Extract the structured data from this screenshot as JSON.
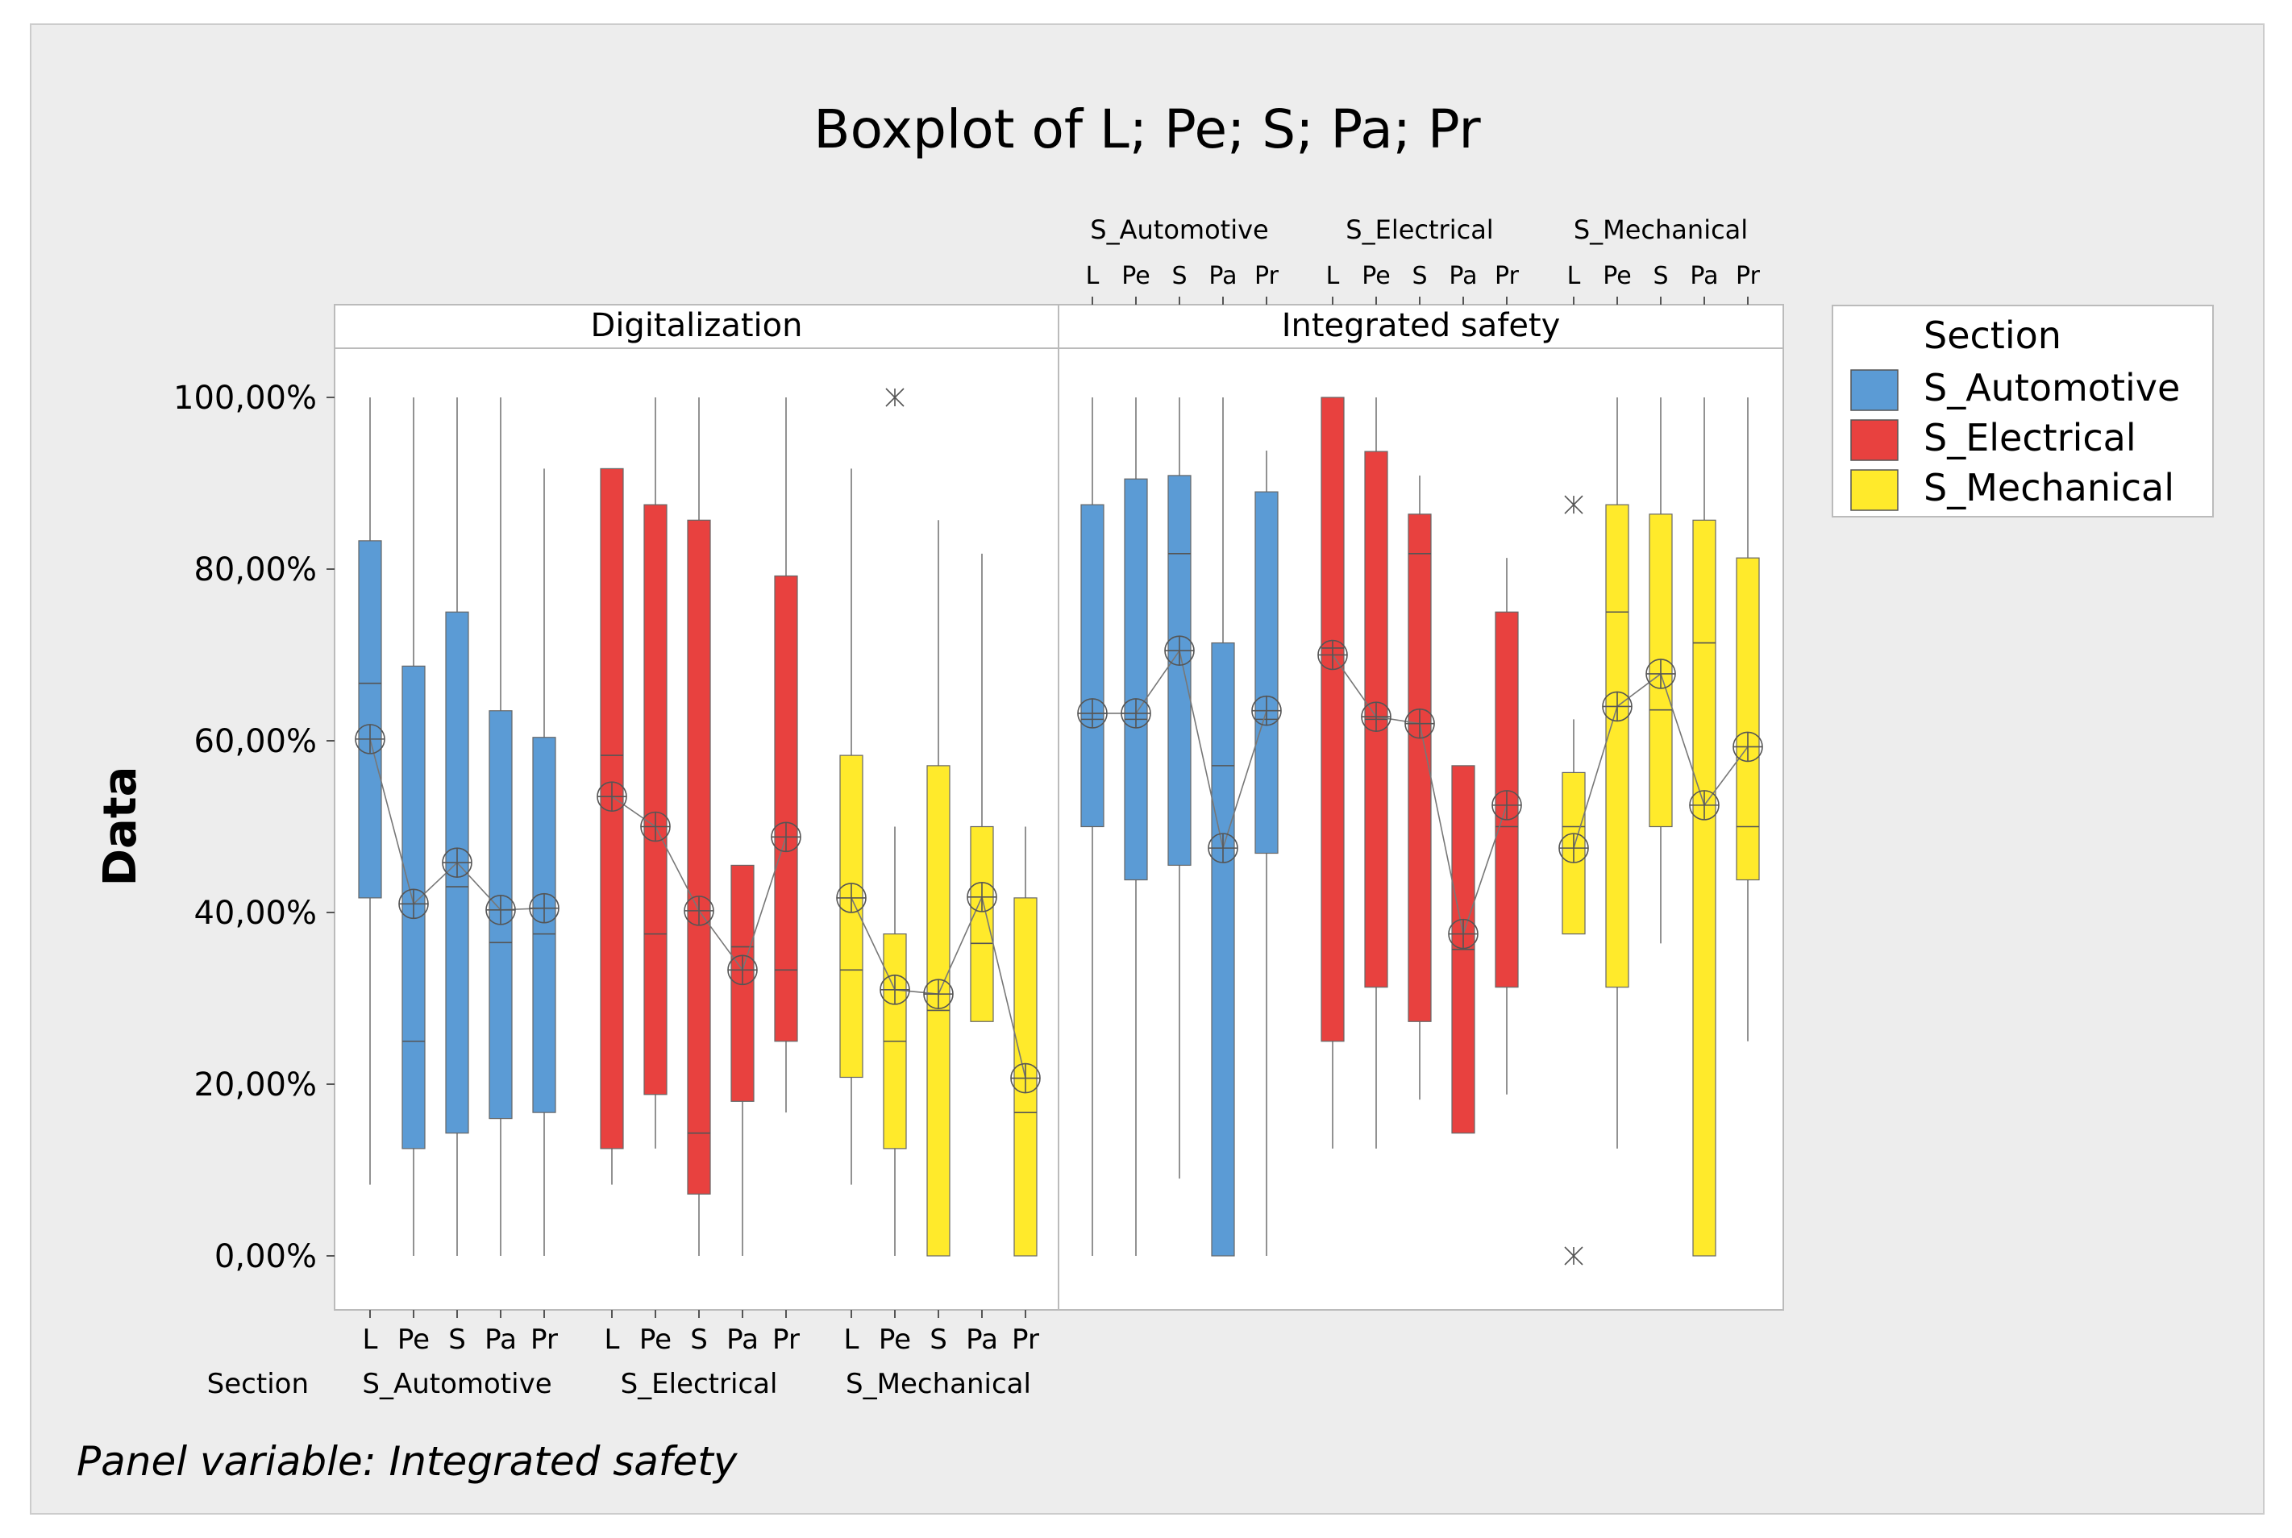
{
  "chart_data": {
    "type": "boxplot",
    "title": "Boxplot of L; Pe; S; Pa; Pr",
    "ylabel": "Data",
    "ylim": [
      -0.06,
      1.1
    ],
    "yticks": [
      0,
      0.2,
      0.4,
      0.6,
      0.8,
      1.0
    ],
    "ytick_labels": [
      "0,00%",
      "20,00%",
      "40,00%",
      "60,00%",
      "80,00%",
      "100,00%"
    ],
    "panel_variable_label": "Panel variable: Integrated safety",
    "group_variable": "Section",
    "variables": [
      "L",
      "Pe",
      "S",
      "Pa",
      "Pr"
    ],
    "groups": [
      "S_Automotive",
      "S_Electrical",
      "S_Mechanical"
    ],
    "legend": {
      "title": "Section",
      "entries": [
        {
          "label": "S_Automotive",
          "color": "#5B9BD5"
        },
        {
          "label": "S_Electrical",
          "color": "#E8413F"
        },
        {
          "label": "S_Mechanical",
          "color": "#FFEA2B"
        }
      ],
      "placement": "right"
    },
    "panels": [
      {
        "name": "Digitalization",
        "groups": [
          {
            "group": "S_Automotive",
            "boxes": [
              {
                "var": "L",
                "min": 0.083,
                "q1": 0.417,
                "median": 0.667,
                "q3": 0.833,
                "max": 1.0,
                "mean": 0.602,
                "outliers": []
              },
              {
                "var": "Pe",
                "min": 0.0,
                "q1": 0.125,
                "median": 0.25,
                "q3": 0.687,
                "max": 1.0,
                "mean": 0.41,
                "outliers": []
              },
              {
                "var": "S",
                "min": 0.0,
                "q1": 0.143,
                "median": 0.43,
                "q3": 0.75,
                "max": 1.0,
                "mean": 0.458,
                "outliers": []
              },
              {
                "var": "Pa",
                "min": 0.0,
                "q1": 0.16,
                "median": 0.365,
                "q3": 0.635,
                "max": 1.0,
                "mean": 0.403,
                "outliers": []
              },
              {
                "var": "Pr",
                "min": 0.0,
                "q1": 0.167,
                "median": 0.375,
                "q3": 0.604,
                "max": 0.917,
                "mean": 0.405,
                "outliers": []
              }
            ]
          },
          {
            "group": "S_Electrical",
            "boxes": [
              {
                "var": "L",
                "min": 0.083,
                "q1": 0.125,
                "median": 0.583,
                "q3": 0.917,
                "max": 0.917,
                "mean": 0.535,
                "outliers": []
              },
              {
                "var": "Pe",
                "min": 0.125,
                "q1": 0.188,
                "median": 0.375,
                "q3": 0.875,
                "max": 1.0,
                "mean": 0.5,
                "outliers": []
              },
              {
                "var": "S",
                "min": 0.0,
                "q1": 0.072,
                "median": 0.143,
                "q3": 0.857,
                "max": 1.0,
                "mean": 0.402,
                "outliers": []
              },
              {
                "var": "Pa",
                "min": 0.0,
                "q1": 0.18,
                "median": 0.36,
                "q3": 0.455,
                "max": 0.455,
                "mean": 0.333,
                "outliers": []
              },
              {
                "var": "Pr",
                "min": 0.167,
                "q1": 0.25,
                "median": 0.333,
                "q3": 0.792,
                "max": 1.0,
                "mean": 0.488,
                "outliers": []
              }
            ]
          },
          {
            "group": "S_Mechanical",
            "boxes": [
              {
                "var": "L",
                "min": 0.083,
                "q1": 0.208,
                "median": 0.333,
                "q3": 0.583,
                "max": 0.917,
                "mean": 0.417,
                "outliers": []
              },
              {
                "var": "Pe",
                "min": 0.0,
                "q1": 0.125,
                "median": 0.25,
                "q3": 0.375,
                "max": 0.5,
                "mean": 0.31,
                "outliers": [
                  1.0
                ]
              },
              {
                "var": "S",
                "min": 0.0,
                "q1": 0.0,
                "median": 0.286,
                "q3": 0.571,
                "max": 0.857,
                "mean": 0.305,
                "outliers": []
              },
              {
                "var": "Pa",
                "min": 0.273,
                "q1": 0.273,
                "median": 0.364,
                "q3": 0.5,
                "max": 0.818,
                "mean": 0.418,
                "outliers": []
              },
              {
                "var": "Pr",
                "min": 0.0,
                "q1": 0.0,
                "median": 0.167,
                "q3": 0.417,
                "max": 0.5,
                "mean": 0.207,
                "outliers": []
              }
            ]
          }
        ]
      },
      {
        "name": "Integrated safety",
        "groups": [
          {
            "group": "S_Automotive",
            "boxes": [
              {
                "var": "L",
                "min": 0.0,
                "q1": 0.5,
                "median": 0.625,
                "q3": 0.875,
                "max": 1.0,
                "mean": 0.632,
                "outliers": []
              },
              {
                "var": "Pe",
                "min": 0.0,
                "q1": 0.438,
                "median": 0.625,
                "q3": 0.905,
                "max": 1.0,
                "mean": 0.632,
                "outliers": []
              },
              {
                "var": "S",
                "min": 0.09,
                "q1": 0.455,
                "median": 0.818,
                "q3": 0.909,
                "max": 1.0,
                "mean": 0.705,
                "outliers": []
              },
              {
                "var": "Pa",
                "min": 0.0,
                "q1": 0.0,
                "median": 0.571,
                "q3": 0.714,
                "max": 1.0,
                "mean": 0.475,
                "outliers": []
              },
              {
                "var": "Pr",
                "min": 0.0,
                "q1": 0.469,
                "median": 0.625,
                "q3": 0.89,
                "max": 0.938,
                "mean": 0.635,
                "outliers": []
              }
            ]
          },
          {
            "group": "S_Electrical",
            "boxes": [
              {
                "var": "L",
                "min": 0.125,
                "q1": 0.25,
                "median": 0.708,
                "q3": 1.0,
                "max": 1.0,
                "mean": 0.7,
                "outliers": []
              },
              {
                "var": "Pe",
                "min": 0.125,
                "q1": 0.313,
                "median": 0.625,
                "q3": 0.937,
                "max": 1.0,
                "mean": 0.628,
                "outliers": []
              },
              {
                "var": "S",
                "min": 0.182,
                "q1": 0.273,
                "median": 0.818,
                "q3": 0.864,
                "max": 0.909,
                "mean": 0.62,
                "outliers": []
              },
              {
                "var": "Pa",
                "min": 0.143,
                "q1": 0.143,
                "median": 0.357,
                "q3": 0.571,
                "max": 0.571,
                "mean": 0.375,
                "outliers": []
              },
              {
                "var": "Pr",
                "min": 0.188,
                "q1": 0.313,
                "median": 0.5,
                "q3": 0.75,
                "max": 0.813,
                "mean": 0.525,
                "outliers": []
              }
            ]
          },
          {
            "group": "S_Mechanical",
            "boxes": [
              {
                "var": "L",
                "min": 0.375,
                "q1": 0.375,
                "median": 0.5,
                "q3": 0.563,
                "max": 0.625,
                "mean": 0.475,
                "outliers": [
                  0.875,
                  0.0
                ]
              },
              {
                "var": "Pe",
                "min": 0.125,
                "q1": 0.313,
                "median": 0.75,
                "q3": 0.875,
                "max": 1.0,
                "mean": 0.64,
                "outliers": []
              },
              {
                "var": "S",
                "min": 0.364,
                "q1": 0.5,
                "median": 0.636,
                "q3": 0.864,
                "max": 1.0,
                "mean": 0.678,
                "outliers": []
              },
              {
                "var": "Pa",
                "min": 0.0,
                "q1": 0.0,
                "median": 0.714,
                "q3": 0.857,
                "max": 1.0,
                "mean": 0.525,
                "outliers": []
              },
              {
                "var": "Pr",
                "min": 0.25,
                "q1": 0.438,
                "median": 0.5,
                "q3": 0.813,
                "max": 1.0,
                "mean": 0.593,
                "outliers": []
              }
            ]
          }
        ]
      }
    ]
  }
}
